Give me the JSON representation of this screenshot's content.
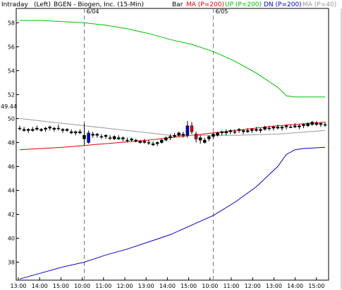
{
  "header": {
    "mode": "Intraday",
    "side": "(Left)",
    "symbol": "BGEN - Biogen, Inc. (15-Min)",
    "chart_style": "Bar"
  },
  "legend": [
    {
      "label": "MA (P=200)",
      "color": "#e00000"
    },
    {
      "label": "UP (P=200)",
      "color": "#00c000"
    },
    {
      "label": "DN (P=200)",
      "color": "#0000c0"
    },
    {
      "label": "MA (P=40)",
      "color": "#999999"
    }
  ],
  "last_price_label": "49.44",
  "chart_data": {
    "type": "line",
    "title": "BGEN - Biogen, Inc. (15-Min)",
    "ylim": [
      36.5,
      59.2
    ],
    "y_ticks": [
      38,
      40,
      42,
      44,
      46,
      48,
      50,
      52,
      54,
      56,
      58
    ],
    "x_ticks": [
      "13:00",
      "14:00",
      "15:00",
      "10:00",
      "11:00",
      "12:00",
      "13:00",
      "14:00",
      "15:00",
      "10:00",
      "11:00",
      "12:00",
      "13:00",
      "14:00",
      "15:00"
    ],
    "day_separators": [
      {
        "label": "6/04",
        "bar_index": 15
      },
      {
        "label": "6/05",
        "bar_index": 45
      }
    ],
    "bar_count": 72,
    "series": [
      {
        "name": "UP (P=200)",
        "color": "#00c000",
        "x": [
          0,
          5,
          10,
          15,
          20,
          25,
          30,
          35,
          40,
          45,
          50,
          55,
          60,
          62,
          64,
          66,
          71
        ],
        "y": [
          58.2,
          58.2,
          58.1,
          58.0,
          57.8,
          57.5,
          57.1,
          56.6,
          56.2,
          55.6,
          54.8,
          53.8,
          52.6,
          51.9,
          51.8,
          51.8,
          51.8
        ]
      },
      {
        "name": "DN (P=200)",
        "color": "#0000c0",
        "x": [
          0,
          5,
          10,
          15,
          20,
          25,
          30,
          35,
          40,
          45,
          50,
          55,
          60,
          62,
          64,
          66,
          71
        ],
        "y": [
          36.6,
          37.1,
          37.6,
          38.0,
          38.6,
          39.1,
          39.7,
          40.3,
          41.1,
          41.9,
          43.0,
          44.3,
          46.0,
          47.0,
          47.4,
          47.5,
          47.6
        ]
      },
      {
        "name": "MA (P=200)",
        "color": "#e00000",
        "x": [
          0,
          10,
          20,
          30,
          40,
          50,
          60,
          71
        ],
        "y": [
          47.4,
          47.6,
          47.9,
          48.2,
          48.6,
          49.0,
          49.4,
          49.7
        ]
      },
      {
        "name": "MA (P=40)",
        "color": "#999999",
        "x": [
          0,
          10,
          20,
          30,
          35,
          40,
          50,
          60,
          71
        ],
        "y": [
          50.0,
          49.6,
          49.2,
          48.8,
          48.6,
          48.6,
          48.6,
          48.7,
          49.0
        ]
      }
    ],
    "ohlc": [
      [
        49.2,
        49.4,
        49.0,
        49.2
      ],
      [
        49.1,
        49.3,
        48.9,
        49.0
      ],
      [
        49.0,
        49.2,
        48.8,
        49.1
      ],
      [
        49.0,
        49.3,
        48.9,
        49.1
      ],
      [
        49.1,
        49.4,
        49.0,
        49.2
      ],
      [
        49.0,
        49.2,
        48.9,
        49.1
      ],
      [
        49.1,
        49.3,
        48.9,
        49.2
      ],
      [
        49.2,
        49.4,
        49.0,
        49.3
      ],
      [
        49.1,
        49.3,
        48.9,
        49.2
      ],
      [
        49.2,
        49.5,
        49.0,
        49.2
      ],
      [
        49.1,
        49.2,
        48.8,
        49.0
      ],
      [
        49.0,
        49.2,
        48.9,
        49.1
      ],
      [
        48.9,
        49.1,
        48.7,
        48.8
      ],
      [
        48.8,
        49.0,
        48.6,
        48.9
      ],
      [
        48.9,
        49.1,
        48.7,
        48.8
      ],
      [
        48.6,
        49.6,
        47.8,
        48.3
      ],
      [
        48.0,
        49.0,
        47.9,
        48.8
      ],
      [
        48.7,
        48.9,
        48.4,
        48.6
      ],
      [
        48.6,
        48.8,
        48.4,
        48.7
      ],
      [
        48.5,
        48.7,
        48.3,
        48.5
      ],
      [
        48.5,
        48.7,
        48.3,
        48.6
      ],
      [
        48.4,
        48.6,
        48.2,
        48.4
      ],
      [
        48.3,
        48.6,
        48.2,
        48.5
      ],
      [
        48.4,
        48.6,
        48.2,
        48.3
      ],
      [
        48.3,
        48.5,
        48.1,
        48.4
      ],
      [
        48.2,
        48.4,
        48.0,
        48.2
      ],
      [
        48.2,
        48.4,
        48.1,
        48.3
      ],
      [
        48.1,
        48.3,
        48.0,
        48.2
      ],
      [
        48.0,
        48.2,
        47.9,
        48.1
      ],
      [
        48.1,
        48.3,
        47.9,
        48.0
      ],
      [
        48.0,
        48.2,
        47.8,
        48.0
      ],
      [
        47.9,
        48.1,
        47.7,
        47.8
      ],
      [
        47.9,
        48.1,
        47.7,
        48.0
      ],
      [
        48.0,
        48.3,
        47.9,
        48.2
      ],
      [
        48.2,
        48.5,
        48.1,
        48.4
      ],
      [
        48.4,
        48.7,
        48.2,
        48.5
      ],
      [
        48.5,
        48.8,
        48.4,
        48.6
      ],
      [
        48.6,
        48.9,
        48.5,
        48.8
      ],
      [
        48.7,
        48.9,
        48.4,
        48.6
      ],
      [
        48.6,
        49.8,
        48.4,
        49.4
      ],
      [
        49.4,
        49.7,
        48.7,
        48.9
      ],
      [
        48.7,
        48.9,
        48.0,
        48.3
      ],
      [
        48.2,
        48.6,
        47.9,
        48.4
      ],
      [
        48.0,
        48.4,
        47.9,
        48.2
      ],
      [
        48.3,
        48.6,
        48.1,
        48.5
      ],
      [
        48.5,
        48.8,
        48.3,
        48.7
      ],
      [
        48.6,
        48.9,
        48.5,
        48.8
      ],
      [
        48.8,
        49.0,
        48.6,
        48.9
      ],
      [
        48.8,
        49.1,
        48.6,
        48.9
      ],
      [
        48.9,
        49.1,
        48.7,
        49.0
      ],
      [
        48.9,
        49.1,
        48.7,
        48.9
      ],
      [
        49.0,
        49.2,
        48.8,
        49.1
      ],
      [
        48.9,
        49.1,
        48.7,
        49.0
      ],
      [
        49.0,
        49.2,
        48.8,
        48.9
      ],
      [
        49.0,
        49.2,
        48.8,
        49.1
      ],
      [
        49.1,
        49.3,
        48.9,
        49.0
      ],
      [
        49.0,
        49.2,
        48.8,
        49.1
      ],
      [
        49.1,
        49.4,
        49.0,
        49.3
      ],
      [
        49.2,
        49.4,
        49.0,
        49.2
      ],
      [
        49.2,
        49.4,
        49.0,
        49.3
      ],
      [
        49.3,
        49.5,
        49.1,
        49.2
      ],
      [
        49.2,
        49.4,
        49.0,
        49.3
      ],
      [
        49.3,
        49.5,
        49.1,
        49.4
      ],
      [
        49.3,
        49.5,
        49.2,
        49.3
      ],
      [
        49.4,
        49.6,
        49.2,
        49.3
      ],
      [
        49.3,
        49.5,
        49.1,
        49.4
      ],
      [
        49.4,
        49.6,
        49.2,
        49.5
      ],
      [
        49.4,
        49.7,
        49.3,
        49.6
      ],
      [
        49.5,
        49.8,
        49.4,
        49.7
      ],
      [
        49.6,
        49.8,
        49.4,
        49.5
      ],
      [
        49.5,
        49.7,
        49.3,
        49.6
      ],
      [
        49.5,
        49.7,
        49.3,
        49.44
      ]
    ]
  }
}
